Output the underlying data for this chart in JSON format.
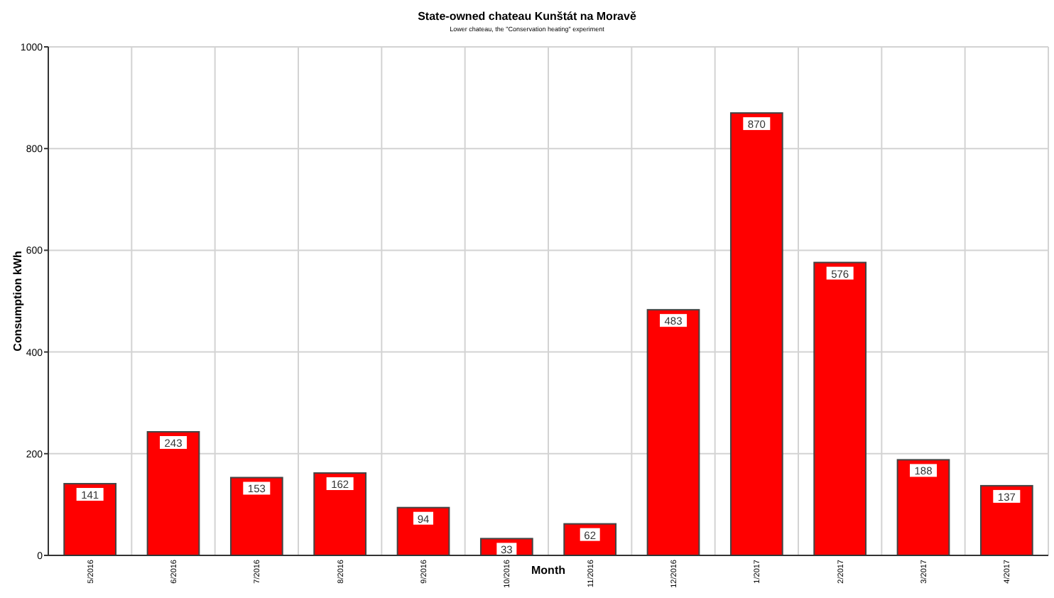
{
  "chart_data": {
    "type": "bar",
    "title": "State-owned chateau Kunštát na Moravě",
    "subtitle": "Lower chateau, the \"Conservation heating\" experiment",
    "xlabel": "Month",
    "ylabel": "Consumption kWh",
    "categories": [
      "5/2016",
      "6/2016",
      "7/2016",
      "8/2016",
      "9/2016",
      "10/2016",
      "11/2016",
      "12/2016",
      "1/2017",
      "2/2017",
      "3/2017",
      "4/2017"
    ],
    "values": [
      141,
      243,
      153,
      162,
      94,
      33,
      62,
      483,
      870,
      576,
      188,
      137
    ],
    "color": "#ff0000",
    "ylim": [
      0,
      1000
    ],
    "yticks": [
      0,
      200,
      400,
      600,
      800,
      1000
    ],
    "grid": true,
    "data_labels": true
  }
}
